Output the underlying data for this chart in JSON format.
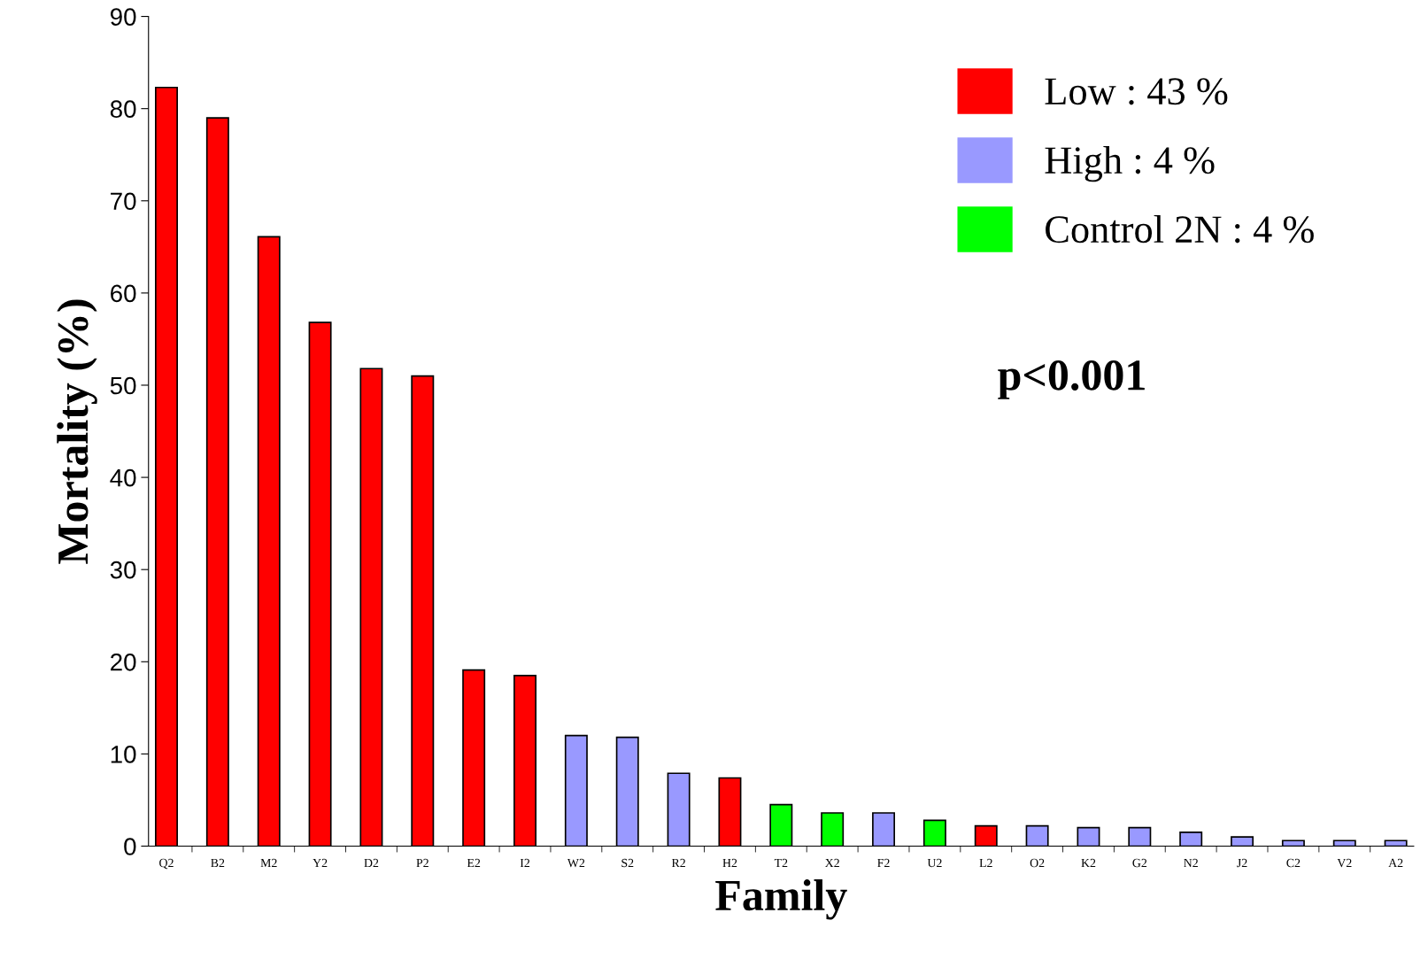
{
  "chart_data": {
    "type": "bar",
    "xlabel": "Family",
    "ylabel": "Mortality (%)",
    "categories": [
      "Q2",
      "B2",
      "M2",
      "Y2",
      "D2",
      "P2",
      "E2",
      "I2",
      "W2",
      "S2",
      "R2",
      "H2",
      "T2",
      "X2",
      "F2",
      "U2",
      "L2",
      "O2",
      "K2",
      "G2",
      "N2",
      "J2",
      "C2",
      "V2",
      "A2"
    ],
    "series": [
      {
        "name": "Low : 43 %",
        "color": "#ff0000",
        "values": [
          82.3,
          79.0,
          66.1,
          56.8,
          51.8,
          51.0,
          19.1,
          18.5,
          null,
          null,
          null,
          7.4,
          null,
          null,
          null,
          null,
          2.2,
          null,
          null,
          null,
          null,
          null,
          null,
          null,
          null
        ]
      },
      {
        "name": "High : 4 %",
        "color": "#9999ff",
        "values": [
          null,
          null,
          null,
          null,
          null,
          null,
          null,
          null,
          12.0,
          11.8,
          7.9,
          null,
          null,
          null,
          3.6,
          null,
          null,
          2.2,
          2.0,
          2.0,
          1.5,
          1.0,
          0.6,
          0.6,
          0.6
        ]
      },
      {
        "name": "Control 2N : 4 %",
        "color": "#00ff00",
        "values": [
          null,
          null,
          null,
          null,
          null,
          null,
          null,
          null,
          null,
          null,
          null,
          null,
          4.5,
          3.6,
          null,
          2.8,
          null,
          null,
          null,
          null,
          null,
          null,
          null,
          null,
          null
        ]
      }
    ],
    "ylim": [
      0,
      90
    ],
    "yticks": [
      0,
      10,
      20,
      30,
      40,
      50,
      60,
      70,
      80,
      90
    ],
    "grid": false,
    "legend": "top right",
    "annotations": [
      "p<0.001"
    ]
  }
}
